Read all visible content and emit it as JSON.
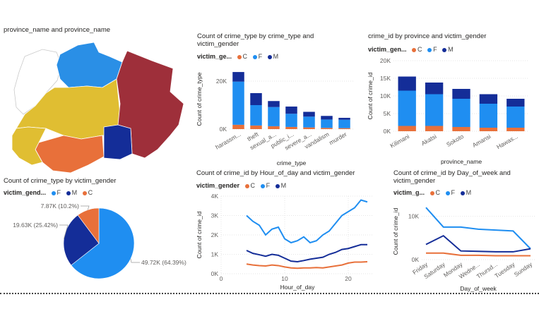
{
  "colors": {
    "C": "#e8703a",
    "F": "#1f8ef1",
    "M": "#142d98"
  },
  "map": {
    "title": "province_name and province_name",
    "region_colors": [
      "#2a8fe6",
      "#e0be32",
      "#9e2f3a",
      "#e8703a",
      "#142d98"
    ]
  },
  "legend_order": [
    "C",
    "F",
    "M"
  ],
  "chart_data": [
    {
      "id": "bar1",
      "type": "bar",
      "stacked": true,
      "title": "Count of crime_type by crime_type and victim_gender",
      "legend_title": "victim_ge...",
      "legend": [
        "C",
        "F",
        "M"
      ],
      "xlabel": "crime_type",
      "ylabel": "Count of crime_type",
      "categories": [
        "harassm...",
        "theft",
        "sexual_a...",
        "public_i...",
        "severe_a...",
        "vandalism",
        "murder"
      ],
      "series": [
        {
          "name": "C",
          "values": [
            1.8,
            1.5,
            1.2,
            0.9,
            0.7,
            0.5,
            0.4
          ]
        },
        {
          "name": "F",
          "values": [
            18,
            8.5,
            8,
            5.5,
            4.5,
            3.5,
            3.5
          ]
        },
        {
          "name": "M",
          "values": [
            4,
            5,
            2.5,
            3,
            2,
            1.5,
            0.8
          ]
        }
      ],
      "yticks": [
        {
          "v": 0,
          "l": "0K"
        },
        {
          "v": 20,
          "l": "20K"
        }
      ],
      "ylim": [
        0,
        25
      ]
    },
    {
      "id": "bar2",
      "type": "bar",
      "stacked": true,
      "title": "crime_id by province and victim_gender",
      "legend_title": "victim_gen...",
      "legend": [
        "C",
        "F",
        "M"
      ],
      "xlabel": "province_name",
      "ylabel": "Count of crime_id",
      "categories": [
        "Kilimani",
        "Akatsi",
        "Sokoto",
        "Amansi",
        "Hawas..."
      ],
      "series": [
        {
          "name": "C",
          "values": [
            1.5,
            1.5,
            1.2,
            1,
            1
          ]
        },
        {
          "name": "F",
          "values": [
            10,
            9,
            8,
            6.8,
            6
          ]
        },
        {
          "name": "M",
          "values": [
            4,
            3.3,
            2.8,
            2.7,
            2.2
          ]
        }
      ],
      "yticks": [
        {
          "v": 0,
          "l": "0K"
        },
        {
          "v": 5,
          "l": "5K"
        },
        {
          "v": 10,
          "l": "10K"
        },
        {
          "v": 15,
          "l": "15K"
        },
        {
          "v": 20,
          "l": "20K"
        }
      ],
      "ylim": [
        0,
        20
      ]
    },
    {
      "id": "pie",
      "type": "pie",
      "title": "Count of crime_type by victim_gender",
      "legend_title": "victim_gend...",
      "legend": [
        "F",
        "M",
        "C"
      ],
      "slices": [
        {
          "name": "F",
          "value": 49.72,
          "label": "49.72K (64.39%)"
        },
        {
          "name": "M",
          "value": 19.63,
          "label": "19.63K (25.42%)"
        },
        {
          "name": "C",
          "value": 7.87,
          "label": "7.87K (10.2%)"
        }
      ]
    },
    {
      "id": "line1",
      "type": "line",
      "title": "Count of crime_id by Hour_of_day and victim_gender",
      "legend_title": "victim_gender",
      "legend": [
        "C",
        "F",
        "M"
      ],
      "xlabel": "Hour_of_day",
      "ylabel": "Count of crime_id",
      "x": [
        4,
        5,
        6,
        7,
        8,
        9,
        10,
        11,
        12,
        13,
        14,
        15,
        16,
        17,
        18,
        19,
        20,
        21,
        22,
        23
      ],
      "series": [
        {
          "name": "C",
          "values": [
            0.5,
            0.45,
            0.42,
            0.4,
            0.45,
            0.42,
            0.35,
            0.3,
            0.28,
            0.3,
            0.3,
            0.32,
            0.3,
            0.35,
            0.4,
            0.45,
            0.55,
            0.6,
            0.6,
            0.62
          ]
        },
        {
          "name": "F",
          "values": [
            3.0,
            2.7,
            2.5,
            2.0,
            2.3,
            2.4,
            1.8,
            1.6,
            1.7,
            1.9,
            1.6,
            1.7,
            2.0,
            2.2,
            2.6,
            3.0,
            3.2,
            3.4,
            3.8,
            3.7
          ]
        },
        {
          "name": "M",
          "values": [
            1.2,
            1.05,
            0.98,
            0.9,
            1.0,
            0.95,
            0.8,
            0.65,
            0.62,
            0.68,
            0.75,
            0.8,
            0.85,
            1.0,
            1.1,
            1.25,
            1.3,
            1.4,
            1.5,
            1.5
          ]
        }
      ],
      "xticks": [
        {
          "v": 0,
          "l": "0"
        },
        {
          "v": 10,
          "l": "10"
        },
        {
          "v": 20,
          "l": "20"
        }
      ],
      "yticks": [
        {
          "v": 0,
          "l": "0K"
        },
        {
          "v": 1,
          "l": "1K"
        },
        {
          "v": 2,
          "l": "2K"
        },
        {
          "v": 3,
          "l": "3K"
        },
        {
          "v": 4,
          "l": "4K"
        }
      ],
      "xlim": [
        0,
        24
      ],
      "ylim": [
        0,
        4
      ]
    },
    {
      "id": "line2",
      "type": "line",
      "title": "Count of crime_id by Day_of_week and victim_gender",
      "legend_title": "victim_g...",
      "legend": [
        "C",
        "F",
        "M"
      ],
      "xlabel": "Day_of_week",
      "ylabel": "Count of crime_id",
      "categories": [
        "Friday",
        "Saturday",
        "Monday",
        "Wedne...",
        "Thursd...",
        "Tuesday",
        "Sunday"
      ],
      "series": [
        {
          "name": "C",
          "values": [
            1.5,
            1.5,
            1.0,
            1.0,
            0.9,
            0.9,
            0.9
          ]
        },
        {
          "name": "F",
          "values": [
            12,
            7.5,
            7.5,
            7,
            6.8,
            6.6,
            2.5
          ]
        },
        {
          "name": "M",
          "values": [
            3.5,
            5.5,
            2.0,
            1.9,
            1.8,
            1.8,
            2.5
          ]
        }
      ],
      "yticks": [
        {
          "v": 0,
          "l": "0K"
        },
        {
          "v": 10,
          "l": "10K"
        }
      ],
      "ylim": [
        0,
        13
      ]
    }
  ]
}
